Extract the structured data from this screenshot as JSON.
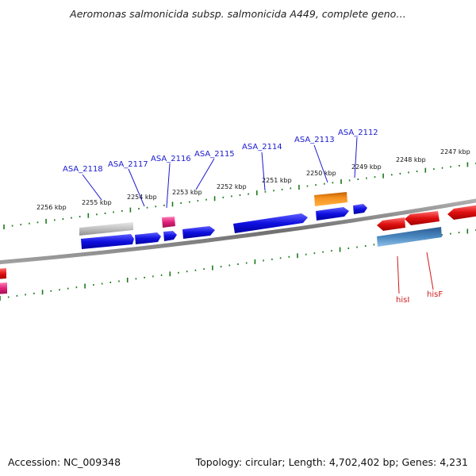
{
  "title": "Aeromonas salmonicida subsp. salmonicida A449, complete geno…",
  "footer": {
    "accession": "Accession: NC_009348",
    "topology": "Topology: circular; Length: 4,702,402 bp; Genes: 4,231"
  },
  "kbp_labels": [
    "2256 kbp",
    "2255 kbp",
    "2254 kbp",
    "2253 kbp",
    "2252 kbp",
    "2251 kbp",
    "2250 kbp",
    "2249 kbp",
    "2248 kbp",
    "2247 kbp"
  ],
  "gene_labels_blue": [
    "ASA_2118",
    "ASA_2117",
    "ASA_2116",
    "ASA_2115",
    "ASA_2114",
    "ASA_2113",
    "ASA_2112"
  ],
  "gene_labels_red": [
    "hisI",
    "hisF"
  ],
  "colors": {
    "forward_gene": "#1010e0",
    "reverse_gene": "#e01010",
    "rna": "#f08a10",
    "pseudo": "#c0c0c0",
    "pink": "#e0207a",
    "steel": "#3a78b0",
    "ticks": "#1a7a1a",
    "backbone": "#808080",
    "label_blue": "#1a1ad0",
    "label_red": "#d01a1a"
  }
}
